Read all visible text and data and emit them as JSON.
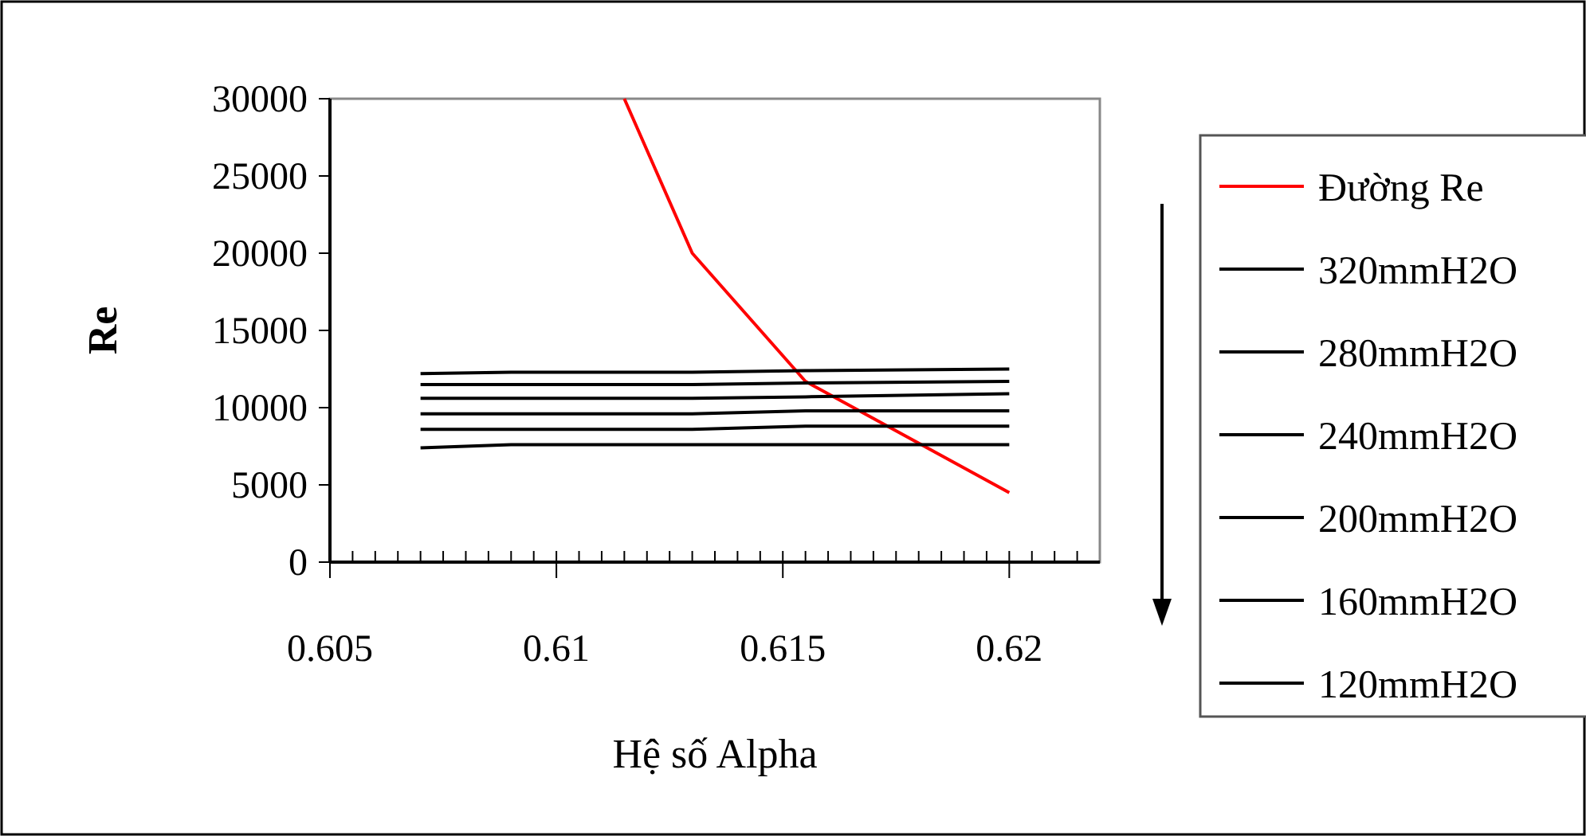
{
  "chart_data": {
    "type": "line",
    "xlabel": "Hệ số Alpha",
    "ylabel": "Re",
    "xlim": [
      0.605,
      0.622
    ],
    "ylim": [
      0,
      30000
    ],
    "xticks": [
      0.605,
      0.61,
      0.615,
      0.62
    ],
    "yticks": [
      0,
      5000,
      10000,
      15000,
      20000,
      25000,
      30000
    ],
    "x": [
      0.607,
      0.609,
      0.613,
      0.6155,
      0.62
    ],
    "legend": "right",
    "grid": false,
    "series": [
      {
        "name": "Đường Re",
        "color": "#ff0000",
        "x": [
          0.6115,
          0.613,
          0.6155,
          0.62
        ],
        "values": [
          30000,
          20000,
          11700,
          4500
        ]
      },
      {
        "name": "320mmH2O",
        "color": "#000000",
        "values": [
          12200,
          12300,
          12300,
          12400,
          12500
        ]
      },
      {
        "name": "280mmH2O",
        "color": "#000000",
        "values": [
          11500,
          11500,
          11500,
          11600,
          11700
        ]
      },
      {
        "name": "240mmH2O",
        "color": "#000000",
        "values": [
          10600,
          10600,
          10600,
          10700,
          10900
        ]
      },
      {
        "name": "200mmH2O",
        "color": "#000000",
        "values": [
          9600,
          9600,
          9600,
          9800,
          9800
        ]
      },
      {
        "name": "160mmH2O",
        "color": "#000000",
        "values": [
          8600,
          8600,
          8600,
          8800,
          8800
        ]
      },
      {
        "name": "120mmH2O",
        "color": "#000000",
        "values": [
          7400,
          7600,
          7600,
          7600,
          7600
        ]
      }
    ]
  }
}
